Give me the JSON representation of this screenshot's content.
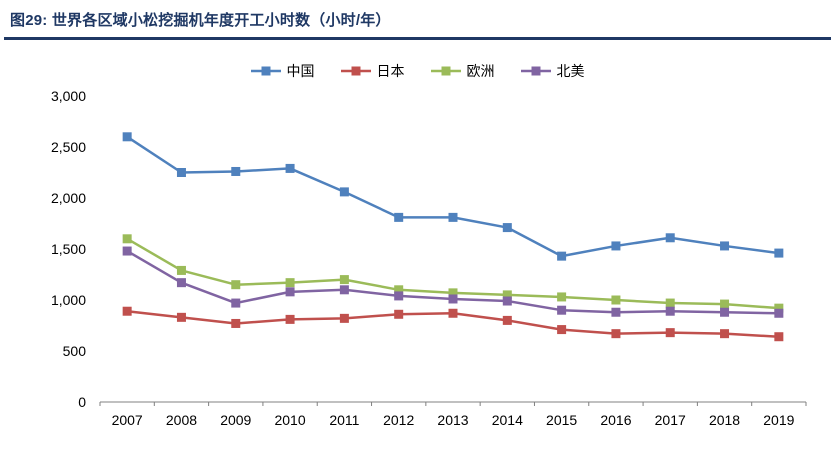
{
  "header": {
    "title": "图29: 世界各区域小松挖掘机年度开工小时数（小时/年）"
  },
  "colors": {
    "title": "#1F3864",
    "divider": "#1F3864",
    "axis": "#808080",
    "tick_text": "#000000"
  },
  "chart_data": {
    "type": "line",
    "marker": "square",
    "grid": false,
    "legend_position": "top",
    "categories": [
      "2007",
      "2008",
      "2009",
      "2010",
      "2011",
      "2012",
      "2013",
      "2014",
      "2015",
      "2016",
      "2017",
      "2018",
      "2019"
    ],
    "series": [
      {
        "name": "中国",
        "color": "#4F81BD",
        "values": [
          2600,
          2250,
          2260,
          2290,
          2060,
          1810,
          1810,
          1710,
          1430,
          1530,
          1610,
          1530,
          1460
        ]
      },
      {
        "name": "日本",
        "color": "#C0504D",
        "values": [
          890,
          830,
          770,
          810,
          820,
          860,
          870,
          800,
          710,
          670,
          680,
          670,
          640
        ]
      },
      {
        "name": "欧洲",
        "color": "#9BBB59",
        "values": [
          1600,
          1290,
          1150,
          1170,
          1200,
          1100,
          1070,
          1050,
          1030,
          1000,
          970,
          960,
          920
        ]
      },
      {
        "name": "北美",
        "color": "#8064A2",
        "values": [
          1480,
          1170,
          970,
          1080,
          1100,
          1040,
          1010,
          990,
          900,
          880,
          890,
          880,
          870
        ]
      }
    ],
    "xlabel": "",
    "ylabel": "",
    "ylim": [
      0,
      3000
    ],
    "ytick_step": 500
  }
}
